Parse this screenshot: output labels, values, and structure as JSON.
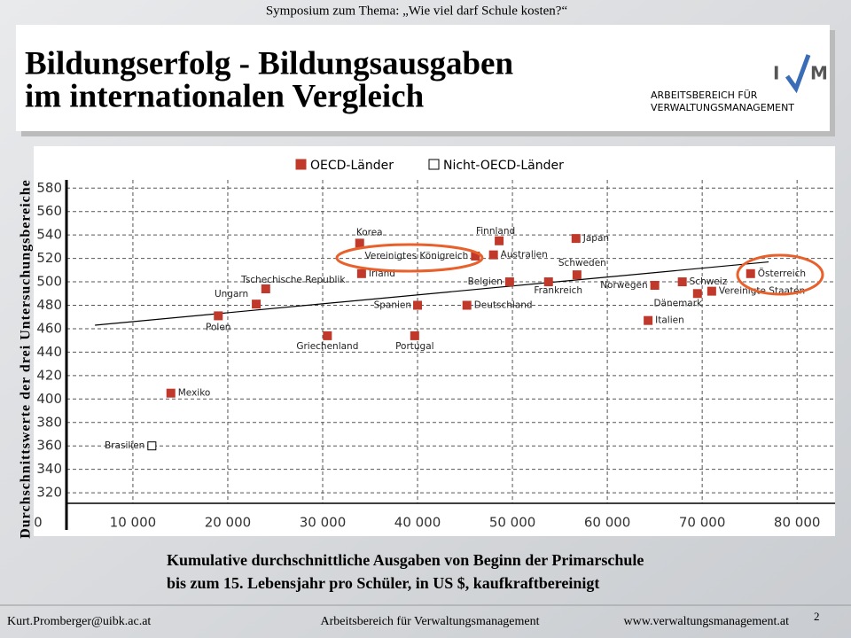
{
  "header": {
    "event": "Symposium zum Thema: „Wie viel darf Schule kosten?“",
    "title_line1": "Bildungserfolg - Bildungsausgaben",
    "title_line2": "im internationalen Vergleich",
    "logo_left": "I",
    "logo_right": "M",
    "unit_line1": "ARBEITSBEREICH FÜR",
    "unit_line2": "VERWALTUNGSMANAGEMENT"
  },
  "chart_data": {
    "type": "scatter",
    "y_label": "Durchschnittswerte der drei Untersuchungsbereiche",
    "x_label_line1": "Kumulative durchschnittliche Ausgaben von Beginn der Primarschule",
    "x_label_line2": "bis zum 15. Lebensjahr pro Schüler, in US $, kaufkraftbereinigt",
    "xlim": [
      3000,
      84000
    ],
    "ylim": [
      311,
      587
    ],
    "xticks": [
      0,
      {
        "value": 10000,
        "label": "10 000"
      },
      {
        "value": 20000,
        "label": "20 000"
      },
      {
        "value": 30000,
        "label": "30 000"
      },
      {
        "value": 40000,
        "label": "40 000"
      },
      {
        "value": 50000,
        "label": "50 000"
      },
      {
        "value": 60000,
        "label": "60 000"
      },
      {
        "value": 70000,
        "label": "70 000"
      },
      {
        "value": 80000,
        "label": "80 000"
      }
    ],
    "yticks": [
      320,
      340,
      360,
      380,
      400,
      420,
      440,
      460,
      480,
      500,
      520,
      540,
      560,
      580
    ],
    "grid": true,
    "series": [
      {
        "name": "OECD-Länder",
        "color": "#c0392b",
        "labels": [
          "Mexiko",
          "Polen",
          "Ungarn",
          "Tschechische Republik",
          "Griechenland",
          "Korea",
          "Irland",
          "Spanien",
          "Portugal",
          "Vereinigtes Königreich",
          "Deutschland",
          "Finnland",
          "Australien",
          "Belgien",
          "Frankreich",
          "Japan",
          "Schweden",
          "Norwegen",
          "Italien",
          "Schweiz",
          "Dänemark",
          "Vereinigte Staaten",
          "Österreich"
        ],
        "x": [
          14000,
          19000,
          23000,
          24000,
          30500,
          33900,
          34100,
          40000,
          39700,
          46100,
          45200,
          48600,
          48000,
          49700,
          53800,
          56700,
          56800,
          65000,
          64300,
          67900,
          69500,
          71000,
          75100
        ],
        "values": [
          405,
          471,
          481,
          494,
          454,
          533,
          507,
          480,
          454,
          522,
          480,
          535,
          523,
          500,
          500,
          537,
          506,
          497,
          467,
          500,
          490,
          492,
          507
        ]
      },
      {
        "name": "Nicht-OECD-Länder",
        "color": "#ffffff",
        "labels": [
          "Brasilien"
        ],
        "x": [
          12000
        ],
        "values": [
          360
        ]
      }
    ],
    "trend": {
      "x": [
        6000,
        77000
      ],
      "y": [
        463,
        517
      ]
    }
  },
  "footer": {
    "email": "Kurt.Promberger@uibk.ac.at",
    "unit": "Arbeitsbereich für Verwaltungsmanagement",
    "web": "www.verwaltungsmanagement.at",
    "page": "2"
  }
}
